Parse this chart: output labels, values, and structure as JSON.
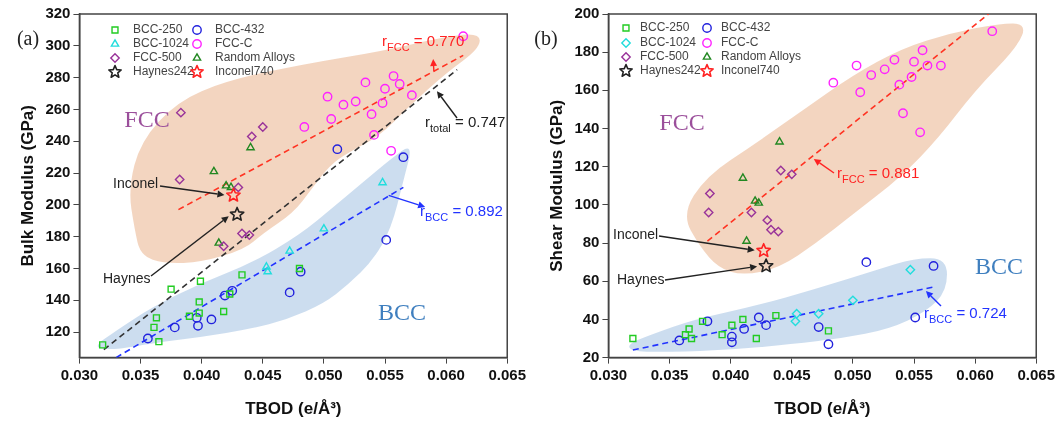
{
  "chart_data": [
    {
      "type": "scatter",
      "xlabel": "TBOD (e/Å³)",
      "ylabel": "Bulk Modulus (GPa)",
      "xlim": [
        0.03,
        0.065
      ],
      "ylim": [
        104,
        320
      ],
      "xticks": [
        {
          "value": 0.03,
          "label": "0.030"
        },
        {
          "value": 0.035,
          "label": "0.035"
        },
        {
          "value": 0.04,
          "label": "0.040"
        },
        {
          "value": 0.045,
          "label": "0.045"
        },
        {
          "value": 0.05,
          "label": "0.050"
        },
        {
          "value": 0.055,
          "label": "0.055"
        },
        {
          "value": 0.06,
          "label": "0.060"
        },
        {
          "value": 0.065,
          "label": "0.065"
        }
      ],
      "yticks": [
        120,
        140,
        160,
        180,
        200,
        220,
        240,
        260,
        280,
        300,
        320
      ],
      "legend": "top left",
      "annotations": [
        "(a)",
        "FCC",
        "BCC",
        "Inconel",
        "Haynes",
        {
          "text": "r$_{FCC}$ = 0.770",
          "x": 0.059,
          "y": 284
        },
        {
          "text": "r$_{total}$ = 0.747",
          "x": 0.0591,
          "y": 273
        },
        {
          "text": "r$_{BCC}$ = 0.892",
          "x": 0.0553,
          "y": 206
        }
      ],
      "series": [
        {
          "name": "BCC-250",
          "color": "#22cc22",
          "marker": "square",
          "x": [
            0.0319,
            0.0375,
            0.0363,
            0.0361,
            0.0365,
            0.039,
            0.0398,
            0.0399,
            0.0398,
            0.0418,
            0.0423,
            0.0433,
            0.048
          ],
          "values": [
            112,
            147,
            129,
            123,
            114,
            130,
            139,
            152,
            132,
            133,
            144,
            156,
            160
          ]
        },
        {
          "name": "BCC-432",
          "color": "#2222dd",
          "marker": "circle",
          "x": [
            0.0356,
            0.0378,
            0.0396,
            0.0397,
            0.0408,
            0.0419,
            0.0425,
            0.0511,
            0.0565,
            0.0551,
            0.0481,
            0.0472
          ],
          "values": [
            116,
            123,
            129,
            124,
            128,
            143,
            146,
            235,
            230,
            178,
            158,
            145
          ]
        },
        {
          "name": "BCC-1024",
          "color": "#22dddd",
          "marker": "triangle",
          "x": [
            0.0453,
            0.0454,
            0.0472,
            0.05,
            0.0548
          ],
          "values": [
            161,
            158,
            171,
            185,
            214
          ]
        },
        {
          "name": "FCC-C",
          "color": "#ff22ff",
          "marker": "circle",
          "x": [
            0.0614,
            0.0557,
            0.0562,
            0.055,
            0.0534,
            0.0572,
            0.0526,
            0.0516,
            0.0503,
            0.0506,
            0.0548,
            0.0539,
            0.0484,
            0.0541,
            0.0555
          ],
          "values": [
            306,
            281,
            276,
            273,
            277,
            269,
            265,
            263,
            268,
            254,
            264,
            257,
            249,
            244,
            234
          ]
        },
        {
          "name": "FCC-500",
          "color": "#993399",
          "marker": "diamond",
          "x": [
            0.0383,
            0.0382,
            0.0418,
            0.043,
            0.0433,
            0.0439,
            0.0441,
            0.045
          ],
          "values": [
            258,
            216,
            174,
            211,
            182,
            181,
            243,
            249
          ]
        },
        {
          "name": "Random Alloys",
          "color": "#228822",
          "marker": "triangle",
          "x": [
            0.041,
            0.042,
            0.0424,
            0.0414,
            0.044
          ],
          "values": [
            221,
            212,
            211,
            176,
            236
          ]
        },
        {
          "name": "Haynes242",
          "color": "#222222",
          "marker": "star",
          "x": [
            0.0429
          ],
          "values": [
            194
          ]
        },
        {
          "name": "Inconel740",
          "color": "#ff2222",
          "marker": "star",
          "x": [
            0.0426
          ],
          "values": [
            206
          ]
        },
        {
          "type": "line",
          "color": "#ff3322",
          "line_style": "dashed",
          "marker": "none",
          "x": [
            0.0381,
            0.0614
          ],
          "values": [
            197,
            294
          ]
        },
        {
          "type": "line",
          "color": "#333333",
          "line_style": "dashed",
          "marker": "none",
          "x": [
            0.032,
            0.0609
          ],
          "values": [
            109,
            285
          ]
        },
        {
          "type": "line",
          "color": "#2233ff",
          "line_style": "dashed",
          "marker": "none",
          "x": [
            0.033,
            0.0565
          ],
          "values": [
            104,
            211
          ]
        }
      ]
    },
    {
      "type": "scatter",
      "xlabel": "TBOD (e/Å³)",
      "ylabel": "Shear Modulus (GPa)",
      "xlim": [
        0.03,
        0.065
      ],
      "ylim": [
        20,
        200
      ],
      "xticks": [
        {
          "value": 0.03,
          "label": "0.030"
        },
        {
          "value": 0.035,
          "label": "0.035"
        },
        {
          "value": 0.04,
          "label": "0.040"
        },
        {
          "value": 0.045,
          "label": "0.045"
        },
        {
          "value": 0.05,
          "label": "0.050"
        },
        {
          "value": 0.055,
          "label": "0.055"
        },
        {
          "value": 0.06,
          "label": "0.060"
        },
        {
          "value": 0.065,
          "label": "0.065"
        }
      ],
      "yticks": [
        20,
        40,
        60,
        80,
        100,
        120,
        140,
        160,
        180,
        200
      ],
      "legend": "top left",
      "annotations": [
        "(b)",
        "FCC",
        "BCC",
        "Inconel",
        "Haynes",
        {
          "text": "r$_{FCC}$ = 0.881",
          "x": 0.0466,
          "y": 125
        },
        {
          "text": "r$_{BCC}$ = 0.724",
          "x": 0.0558,
          "y": 56
        }
      ],
      "series": [
        {
          "name": "BCC-250",
          "color": "#22cc22",
          "marker": "square",
          "x": [
            0.032,
            0.0366,
            0.0363,
            0.0368,
            0.0377,
            0.0393,
            0.0401,
            0.041,
            0.0421,
            0.0437,
            0.048
          ],
          "values": [
            30,
            35,
            32,
            30,
            39,
            32,
            37,
            40,
            30,
            42,
            34
          ]
        },
        {
          "name": "BCC-432",
          "color": "#2222dd",
          "marker": "circle",
          "x": [
            0.0358,
            0.0381,
            0.0401,
            0.0401,
            0.0411,
            0.0423,
            0.0429,
            0.0511,
            0.0566,
            0.0551,
            0.0472,
            0.048
          ],
          "values": [
            29,
            39,
            28,
            31,
            35,
            41,
            37,
            70,
            68,
            41,
            36,
            27
          ]
        },
        {
          "name": "BCC-1024",
          "color": "#22dddd",
          "marker": "diamond",
          "x": [
            0.0454,
            0.0453,
            0.0472,
            0.05,
            0.0547
          ],
          "values": [
            43,
            39,
            43,
            50,
            66
          ]
        },
        {
          "name": "FCC-C",
          "color": "#ff22ff",
          "marker": "circle",
          "x": [
            0.0614,
            0.0557,
            0.0534,
            0.055,
            0.0503,
            0.0526,
            0.0561,
            0.0572,
            0.0515,
            0.0548,
            0.0484,
            0.0538,
            0.0506,
            0.0541,
            0.0555
          ],
          "values": [
            191,
            181,
            176,
            175,
            173,
            171,
            173,
            173,
            168,
            167,
            164,
            163,
            159,
            148,
            138
          ]
        },
        {
          "name": "FCC-500",
          "color": "#993399",
          "marker": "diamond",
          "x": [
            0.0383,
            0.0382,
            0.0417,
            0.043,
            0.0433,
            0.0439,
            0.0441,
            0.045
          ],
          "values": [
            106,
            96,
            96,
            92,
            87,
            86,
            118,
            116
          ]
        },
        {
          "name": "Random Alloys",
          "color": "#228822",
          "marker": "triangle",
          "x": [
            0.041,
            0.042,
            0.0423,
            0.0413,
            0.044
          ],
          "values": [
            114,
            102,
            101,
            81,
            133
          ]
        },
        {
          "name": "Haynes242",
          "color": "#222222",
          "marker": "star",
          "x": [
            0.0429
          ],
          "values": [
            68
          ]
        },
        {
          "name": "Inconel740",
          "color": "#ff2222",
          "marker": "star",
          "x": [
            0.0427
          ],
          "values": [
            76
          ]
        },
        {
          "type": "line",
          "color": "#ff3322",
          "line_style": "dashed",
          "marker": "none",
          "x": [
            0.0381,
            0.0611
          ],
          "values": [
            81,
            200
          ]
        },
        {
          "type": "line",
          "color": "#2233ff",
          "line_style": "dashed",
          "marker": "none",
          "x": [
            0.032,
            0.0566
          ],
          "values": [
            24,
            57
          ]
        }
      ]
    }
  ]
}
